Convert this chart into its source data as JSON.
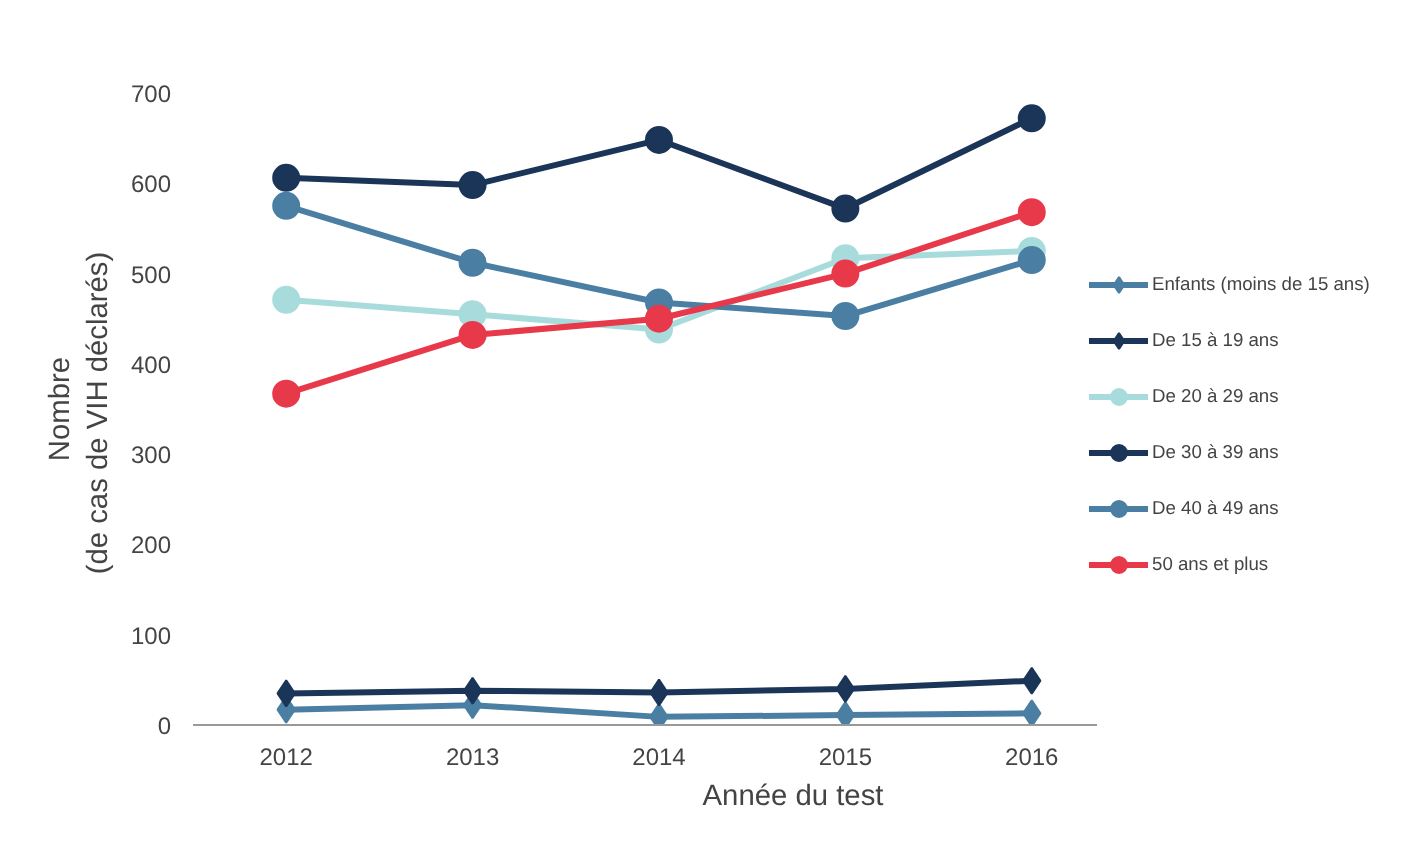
{
  "chart_data": {
    "type": "line",
    "xlabel": "Année du test",
    "ylabel": "Nombre\n(de  cas de VIH déclarés)",
    "categories": [
      "2012",
      "2013",
      "2014",
      "2015",
      "2016"
    ],
    "ylim": [
      0,
      700
    ],
    "yticks": [
      0,
      100,
      200,
      300,
      400,
      500,
      600,
      700
    ],
    "grid": false,
    "legend": "right",
    "series": [
      {
        "name": "Enfants (moins de 15 ans)",
        "color": "#4a7fa3",
        "marker": "diamond",
        "values": [
          17,
          22,
          9,
          11,
          13
        ]
      },
      {
        "name": "De 15 à 19 ans",
        "color": "#1b3558",
        "marker": "diamond",
        "values": [
          35,
          38,
          36,
          40,
          49
        ]
      },
      {
        "name": "De 20 à 29 ans",
        "color": "#a8dcdc",
        "marker": "circle",
        "values": [
          471,
          455,
          438,
          517,
          525
        ]
      },
      {
        "name": "De 30 à 39 ans",
        "color": "#1b3558",
        "marker": "circle",
        "values": [
          606,
          598,
          648,
          572,
          672
        ]
      },
      {
        "name": "De 40 à 49 ans",
        "color": "#4a7fa3",
        "marker": "circle",
        "values": [
          575,
          512,
          468,
          453,
          515
        ]
      },
      {
        "name": "50 ans et plus",
        "color": "#e8394a",
        "marker": "circle",
        "values": [
          367,
          432,
          450,
          500,
          568
        ]
      }
    ]
  }
}
